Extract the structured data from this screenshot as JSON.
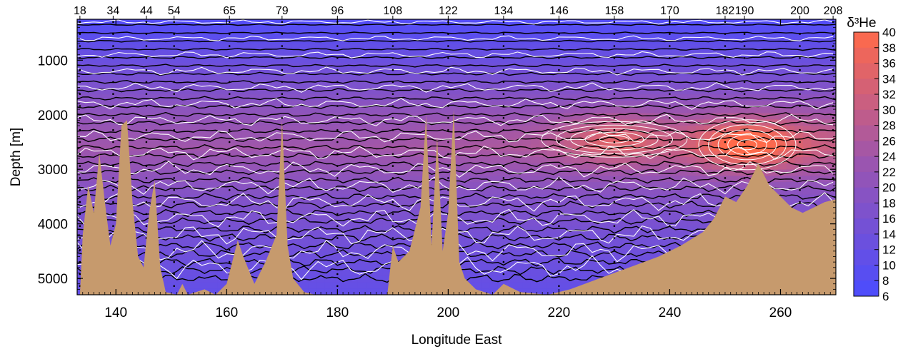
{
  "chart_data": {
    "type": "heatmap",
    "title": "",
    "xlabel": "Longitude East",
    "ylabel": "Depth [m]",
    "x_range": [
      133,
      270
    ],
    "y_range": [
      5300,
      250
    ],
    "y_inverted": true,
    "x_ticks": [
      140,
      160,
      180,
      200,
      220,
      240,
      260
    ],
    "x_tick_labels": [
      "140",
      "160",
      "180",
      "200",
      "220",
      "240",
      "260"
    ],
    "y_ticks": [
      1000,
      2000,
      3000,
      4000,
      5000
    ],
    "y_tick_labels": [
      "1000",
      "2000",
      "3000",
      "4000",
      "5000"
    ],
    "station_axis": {
      "labels": [
        "18",
        "34",
        "44",
        "54",
        "65",
        "79",
        "96",
        "108",
        "122",
        "134",
        "146",
        "158",
        "170",
        "182",
        "190",
        "200",
        "208"
      ],
      "longitudes": [
        133.5,
        139.5,
        145.5,
        150.5,
        160.5,
        170,
        180,
        190,
        200,
        210,
        220,
        230,
        240,
        250,
        253.5,
        263.5,
        269.5
      ]
    },
    "colorbar": {
      "label": "δ³He",
      "min": 6,
      "max": 40,
      "ticks": [
        6,
        8,
        10,
        12,
        14,
        16,
        18,
        20,
        22,
        24,
        26,
        28,
        30,
        32,
        34,
        36,
        38,
        40
      ],
      "tick_labels": [
        "6",
        "8",
        "10",
        "12",
        "14",
        "16",
        "18",
        "20",
        "22",
        "24",
        "26",
        "28",
        "30",
        "32",
        "34",
        "36",
        "38",
        "40"
      ],
      "color_low": "#4a4cff",
      "color_mid": "#9a55b0",
      "color_high": "#ff6a4a"
    },
    "plumes": [
      {
        "longitude": 230,
        "depth": 2450,
        "peak_value": 34
      },
      {
        "longitude": 254,
        "depth": 2550,
        "peak_value": 40
      }
    ],
    "background_gradient": [
      {
        "depth": 300,
        "value": 8
      },
      {
        "depth": 1000,
        "value": 13
      },
      {
        "depth": 2000,
        "value": 21
      },
      {
        "depth": 2600,
        "value": 24
      },
      {
        "depth": 3500,
        "value": 18
      },
      {
        "depth": 4500,
        "value": 14
      },
      {
        "depth": 5300,
        "value": 11
      }
    ],
    "bathymetry": [
      [
        133.5,
        5300
      ],
      [
        134,
        4200
      ],
      [
        135,
        3300
      ],
      [
        136,
        3800
      ],
      [
        137,
        2700
      ],
      [
        138,
        3600
      ],
      [
        139,
        4400
      ],
      [
        140,
        4000
      ],
      [
        141,
        2200
      ],
      [
        142,
        2100
      ],
      [
        143,
        3600
      ],
      [
        144,
        4600
      ],
      [
        145,
        4800
      ],
      [
        146,
        3800
      ],
      [
        147,
        3200
      ],
      [
        148,
        4800
      ],
      [
        149,
        5250
      ],
      [
        151,
        5300
      ],
      [
        152,
        5100
      ],
      [
        153,
        5300
      ],
      [
        156,
        5200
      ],
      [
        158,
        5300
      ],
      [
        160,
        5100
      ],
      [
        162,
        4300
      ],
      [
        163,
        4600
      ],
      [
        165,
        5100
      ],
      [
        167,
        4700
      ],
      [
        169,
        4200
      ],
      [
        170,
        2100
      ],
      [
        171,
        4400
      ],
      [
        172,
        5000
      ],
      [
        174,
        5250
      ],
      [
        176,
        5300
      ],
      [
        189,
        5300
      ],
      [
        190,
        4400
      ],
      [
        191,
        4700
      ],
      [
        193,
        4500
      ],
      [
        195,
        3700
      ],
      [
        196,
        2000
      ],
      [
        197,
        4400
      ],
      [
        198,
        2400
      ],
      [
        199,
        4500
      ],
      [
        200,
        3800
      ],
      [
        201,
        1900
      ],
      [
        202,
        4700
      ],
      [
        203,
        5000
      ],
      [
        205,
        5200
      ],
      [
        208,
        5300
      ],
      [
        210,
        5100
      ],
      [
        213,
        5250
      ],
      [
        218,
        5300
      ],
      [
        222,
        5200
      ],
      [
        226,
        5050
      ],
      [
        230,
        4900
      ],
      [
        234,
        4750
      ],
      [
        238,
        4600
      ],
      [
        242,
        4400
      ],
      [
        246,
        4150
      ],
      [
        248,
        3900
      ],
      [
        250,
        3500
      ],
      [
        252,
        3600
      ],
      [
        254,
        3300
      ],
      [
        256,
        2900
      ],
      [
        258,
        3300
      ],
      [
        260,
        3500
      ],
      [
        262,
        3700
      ],
      [
        264,
        3800
      ],
      [
        266,
        3700
      ],
      [
        268,
        3600
      ],
      [
        270,
        3550
      ]
    ],
    "bathymetry_color": "#c69a6d",
    "contour_colors": {
      "black": "#000000",
      "white": "#ffffff"
    }
  }
}
